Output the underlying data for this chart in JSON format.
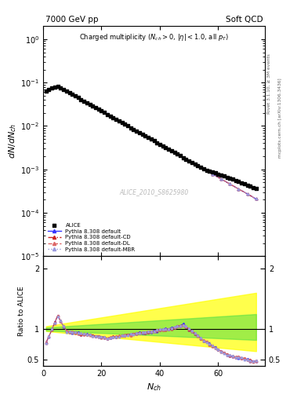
{
  "title_left": "7000 GeV pp",
  "title_right": "Soft QCD",
  "watermark": "ALICE_2010_S8625980",
  "right_label_top": "Rivet 3.1.10, ≥ 3M events",
  "right_label_bot": "mcplots.cern.ch [arXiv:1306.3436]",
  "xlim": [
    0,
    76
  ],
  "ylim_main_log": [
    -5,
    0.5
  ],
  "colors": {
    "alice": "#000000",
    "default": "#3333ff",
    "cd": "#cc2222",
    "dl": "#dd6666",
    "mbr": "#9999dd"
  },
  "band_yellow_color": "#ffff00",
  "band_yellow_alpha": 0.7,
  "band_green_color": "#44dd44",
  "band_green_alpha": 0.5
}
